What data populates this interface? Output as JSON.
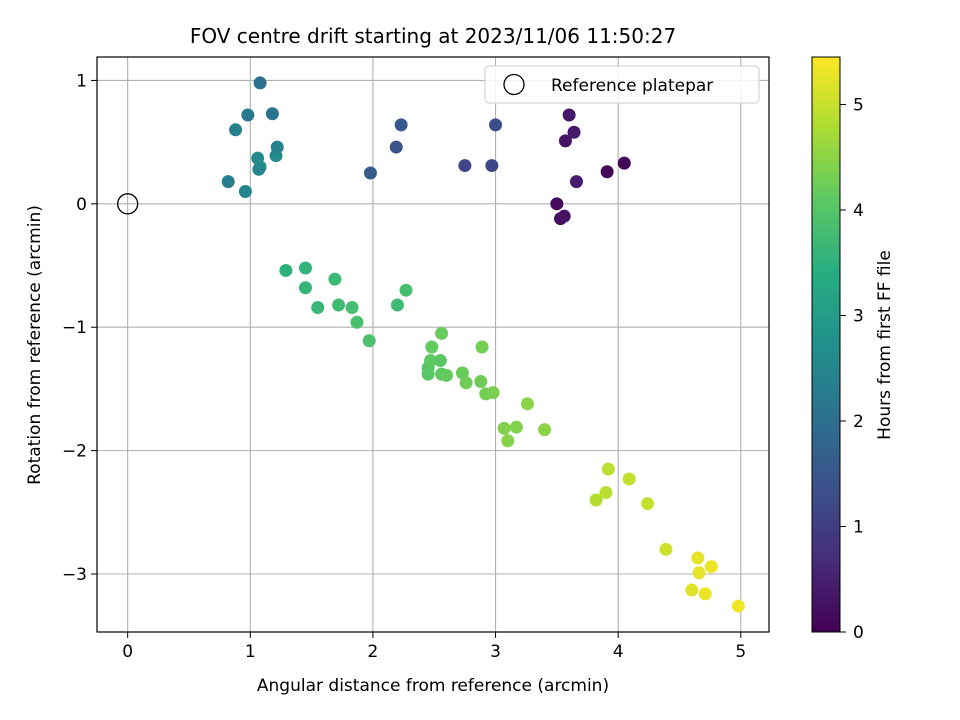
{
  "chart_data": {
    "type": "scatter",
    "title": "FOV centre drift starting at 2023/11/06 11:50:27",
    "xlabel": "Angular distance from reference (arcmin)",
    "ylabel": "Rotation from reference (arcmin)",
    "xlim": [
      -0.25,
      5.23
    ],
    "ylim": [
      -3.47,
      1.19
    ],
    "xticks": [
      0,
      1,
      2,
      3,
      4,
      5
    ],
    "xtick_labels": [
      "0",
      "1",
      "2",
      "3",
      "4",
      "5"
    ],
    "yticks": [
      1,
      0,
      -1,
      -2,
      -3
    ],
    "ytick_labels": [
      "1",
      "0",
      "−1",
      "−2",
      "−3"
    ],
    "grid": true,
    "legend": {
      "position": "top-right",
      "entries": [
        "Reference platepar"
      ]
    },
    "reference_point": {
      "x": 0,
      "y": 0,
      "marker": "open-circle",
      "color": "#000000"
    },
    "colorbar": {
      "label": "Hours from first FF file",
      "range": [
        0,
        5.45
      ],
      "ticks": [
        0,
        1,
        2,
        3,
        4,
        5
      ],
      "tick_labels": [
        "0",
        "1",
        "2",
        "3",
        "4",
        "5"
      ],
      "colormap": "viridis"
    },
    "series": [
      {
        "x": [
          3.5,
          3.53,
          3.56,
          3.57,
          3.6,
          3.64,
          3.66,
          3.91,
          4.05,
          2.75,
          2.97,
          3.0,
          2.19,
          2.23,
          1.98,
          0.82,
          0.88,
          0.96,
          0.98,
          1.06,
          1.08,
          1.08,
          1.07,
          1.18,
          1.21,
          1.22,
          1.29,
          1.45,
          1.45,
          1.55,
          1.69,
          1.72,
          1.83,
          1.87,
          1.97,
          2.2,
          2.27,
          2.45,
          2.45,
          2.47,
          2.48,
          2.55,
          2.56,
          2.56,
          2.6,
          2.73,
          2.76,
          2.88,
          2.89,
          2.92,
          2.98,
          3.07,
          3.1,
          3.17,
          3.26,
          3.4,
          3.82,
          3.9,
          3.92,
          4.09,
          4.24,
          4.39,
          4.6,
          4.65,
          4.66,
          4.71,
          4.76,
          4.98
        ],
        "y": [
          0.0,
          -0.12,
          -0.1,
          0.51,
          0.72,
          0.58,
          0.18,
          0.26,
          0.33,
          0.31,
          0.31,
          0.64,
          0.46,
          0.64,
          0.25,
          0.18,
          0.6,
          0.1,
          0.72,
          0.37,
          0.3,
          0.98,
          0.28,
          0.73,
          0.39,
          0.46,
          -0.54,
          -0.52,
          -0.68,
          -0.84,
          -0.61,
          -0.82,
          -0.84,
          -0.96,
          -1.11,
          -0.82,
          -0.7,
          -1.33,
          -1.38,
          -1.27,
          -1.16,
          -1.27,
          -1.38,
          -1.05,
          -1.39,
          -1.37,
          -1.45,
          -1.44,
          -1.16,
          -1.54,
          -1.53,
          -1.82,
          -1.92,
          -1.81,
          -1.62,
          -1.83,
          -2.4,
          -2.34,
          -2.15,
          -2.23,
          -2.43,
          -2.8,
          -3.13,
          -2.87,
          -2.99,
          -3.16,
          -2.94,
          -3.26
        ],
        "hours": [
          0.15,
          0.2,
          0.25,
          0.3,
          0.35,
          0.4,
          0.45,
          0.1,
          0.05,
          1.15,
          1.2,
          1.3,
          1.4,
          1.5,
          1.6,
          2.3,
          2.4,
          2.5,
          2.2,
          2.6,
          2.8,
          2.0,
          2.5,
          2.1,
          2.6,
          2.4,
          3.5,
          3.55,
          3.6,
          3.65,
          3.7,
          3.75,
          3.8,
          3.85,
          3.9,
          3.72,
          3.82,
          4.0,
          4.05,
          4.1,
          4.15,
          4.05,
          4.1,
          4.2,
          4.15,
          4.2,
          4.25,
          4.25,
          4.3,
          4.3,
          4.35,
          4.4,
          4.45,
          4.4,
          4.5,
          4.5,
          4.85,
          4.9,
          4.9,
          4.95,
          5.0,
          5.05,
          5.2,
          5.25,
          5.25,
          5.3,
          5.3,
          5.35
        ]
      }
    ]
  }
}
